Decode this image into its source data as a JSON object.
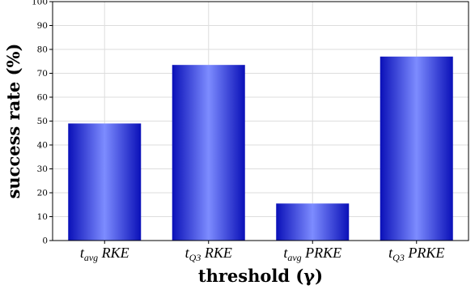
{
  "chart_data": {
    "type": "bar",
    "categories": [
      {
        "main": "t",
        "sub": "avg",
        "tail": " RKE"
      },
      {
        "main": "t",
        "sub": "Q3",
        "tail": " RKE"
      },
      {
        "main": "t",
        "sub": "avg",
        "tail": " PRKE"
      },
      {
        "main": "t",
        "sub": "Q3",
        "tail": " PRKE"
      }
    ],
    "values": [
      49,
      73.5,
      15.5,
      77
    ],
    "ylabel": "success rate (%)",
    "xlabel": "threshold (γ)",
    "ylim": [
      0,
      100
    ],
    "yticks": [
      0,
      10,
      20,
      30,
      40,
      50,
      60,
      70,
      80,
      90,
      100
    ],
    "grid": true,
    "bar_color_dark": "#0a10b8",
    "bar_color_light": "#7d8cff",
    "grid_color": "#dddddd"
  }
}
